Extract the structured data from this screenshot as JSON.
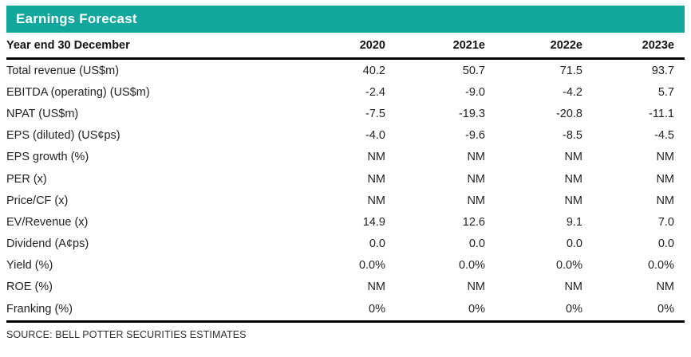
{
  "colors": {
    "accent": "#11a79d",
    "rule": "#000000"
  },
  "title": "Earnings Forecast",
  "table": {
    "columns": [
      "Year end 30 December",
      "2020",
      "2021e",
      "2022e",
      "2023e"
    ],
    "rows": [
      {
        "label": "Total revenue (US$m)",
        "values": [
          "40.2",
          "50.7",
          "71.5",
          "93.7"
        ]
      },
      {
        "label": "EBITDA (operating) (US$m)",
        "values": [
          "-2.4",
          "-9.0",
          "-4.2",
          "5.7"
        ]
      },
      {
        "label": "NPAT (US$m)",
        "values": [
          "-7.5",
          "-19.3",
          "-20.8",
          "-11.1"
        ]
      },
      {
        "label": "EPS (diluted) (US¢ps)",
        "values": [
          "-4.0",
          "-9.6",
          "-8.5",
          "-4.5"
        ]
      },
      {
        "label": "EPS growth (%)",
        "values": [
          "NM",
          "NM",
          "NM",
          "NM"
        ]
      },
      {
        "label": "PER (x)",
        "values": [
          "NM",
          "NM",
          "NM",
          "NM"
        ]
      },
      {
        "label": "Price/CF (x)",
        "values": [
          "NM",
          "NM",
          "NM",
          "NM"
        ]
      },
      {
        "label": "EV/Revenue (x)",
        "values": [
          "14.9",
          "12.6",
          "9.1",
          "7.0"
        ]
      },
      {
        "label": "Dividend (A¢ps)",
        "values": [
          "0.0",
          "0.0",
          "0.0",
          "0.0"
        ]
      },
      {
        "label": "Yield (%)",
        "values": [
          "0.0%",
          "0.0%",
          "0.0%",
          "0.0%"
        ]
      },
      {
        "label": "ROE (%)",
        "values": [
          "NM",
          "NM",
          "NM",
          "NM"
        ]
      },
      {
        "label": "Franking (%)",
        "values": [
          "0%",
          "0%",
          "0%",
          "0%"
        ]
      }
    ]
  },
  "source": "SOURCE: BELL POTTER SECURITIES ESTIMATES"
}
